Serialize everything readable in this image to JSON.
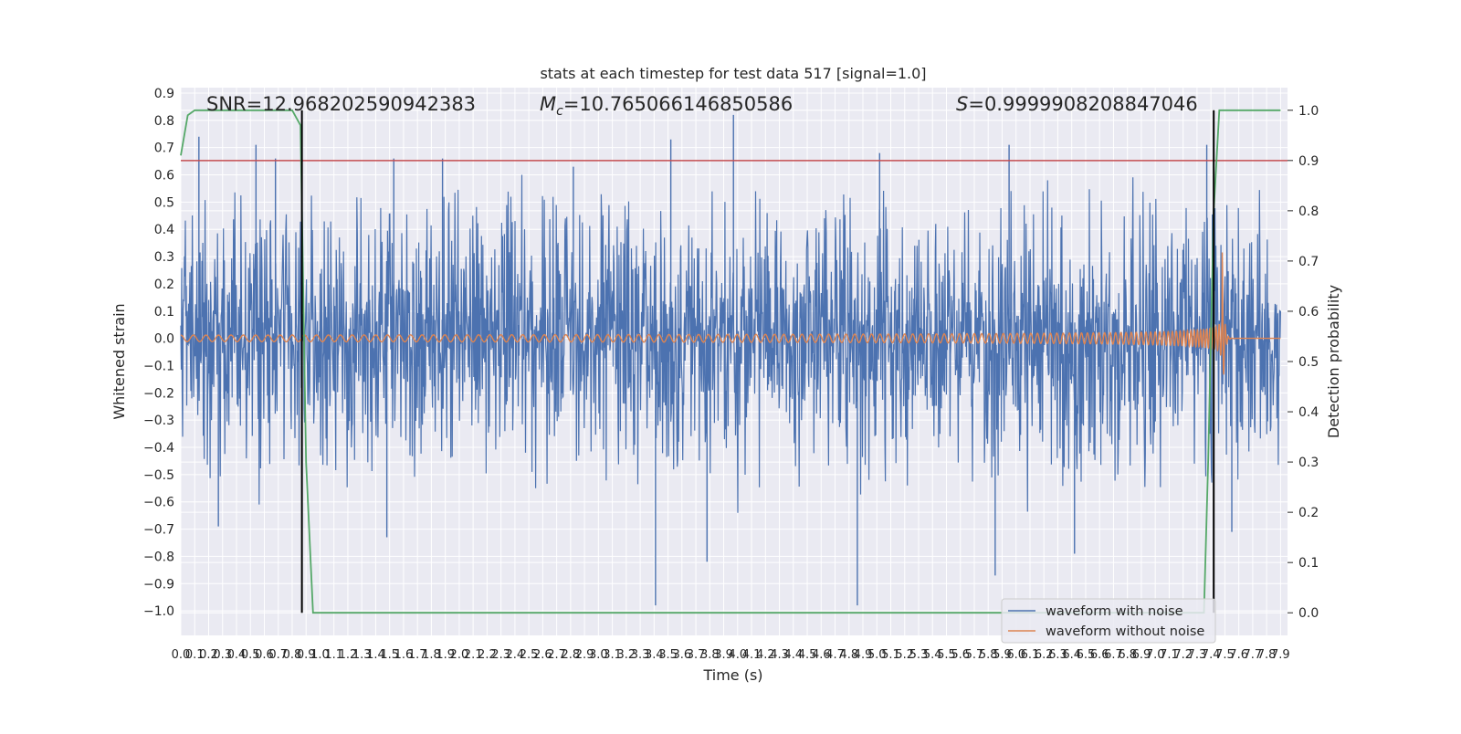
{
  "chart_data": {
    "type": "line",
    "title": "stats at each timestep for test data 517 [signal=1.0]",
    "xlabel": "Time (s)",
    "ylabel": "Whitened strain",
    "ylabel_right": "Detection probability",
    "xlim": [
      0.0,
      7.95
    ],
    "ylim": [
      -1.09,
      0.92
    ],
    "ylim_right": [
      -0.045,
      1.045
    ],
    "x_ticks": [
      0.0,
      0.1,
      0.2,
      0.3,
      0.4,
      0.5,
      0.6,
      0.7,
      0.8,
      0.9,
      1.0,
      1.1,
      1.2,
      1.3,
      1.4,
      1.5,
      1.6,
      1.7,
      1.8,
      1.9,
      2.0,
      2.1,
      2.2,
      2.3,
      2.4,
      2.5,
      2.6,
      2.7,
      2.8,
      2.9,
      3.0,
      3.1,
      3.2,
      3.3,
      3.4,
      3.5,
      3.6,
      3.7,
      3.8,
      3.9,
      4.0,
      4.1,
      4.2,
      4.3,
      4.4,
      4.5,
      4.6,
      4.7,
      4.8,
      4.9,
      5.0,
      5.1,
      5.2,
      5.3,
      5.4,
      5.5,
      5.6,
      5.7,
      5.8,
      5.9,
      6.0,
      6.1,
      6.2,
      6.3,
      6.4,
      6.5,
      6.6,
      6.7,
      6.8,
      6.9,
      7.0,
      7.1,
      7.2,
      7.3,
      7.4,
      7.5,
      7.6,
      7.7,
      7.8,
      7.9
    ],
    "x_tick_labels": [
      "0.0",
      "0.1",
      "0.2",
      "0.3",
      "0.4",
      "0.5",
      "0.6",
      "0.7",
      "0.8",
      "0.9",
      "1.0",
      "1.1",
      "1.2",
      "1.3",
      "1.4",
      "1.5",
      "1.6",
      "1.7",
      "1.8",
      "1.9",
      "2.0",
      "2.1",
      "2.2",
      "2.3",
      "2.4",
      "2.5",
      "2.6",
      "2.7",
      "2.8",
      "2.9",
      "3.0",
      "3.1",
      "3.2",
      "3.3",
      "3.4",
      "3.5",
      "3.6",
      "3.7",
      "3.8",
      "3.9",
      "4.0",
      "4.1",
      "4.2",
      "4.3",
      "4.4",
      "4.5",
      "4.6",
      "4.7",
      "4.8",
      "4.9",
      "5.0",
      "5.1",
      "5.2",
      "5.3",
      "5.4",
      "5.5",
      "5.6",
      "5.7",
      "5.8",
      "5.9",
      "6.0",
      "6.1",
      "6.2",
      "6.3",
      "6.4",
      "6.5",
      "6.6",
      "6.7",
      "6.8",
      "6.9",
      "7.0",
      "7.1",
      "7.2",
      "7.3",
      "7.4",
      "7.5",
      "7.6",
      "7.7",
      "7.8",
      "7.9"
    ],
    "y_ticks": [
      0.9,
      0.8,
      0.7,
      0.6,
      0.5,
      0.4,
      0.3,
      0.2,
      0.1,
      0.0,
      -0.1,
      -0.2,
      -0.3,
      -0.4,
      -0.5,
      -0.6,
      -0.7,
      -0.8,
      -0.9,
      -1.0
    ],
    "y_tick_labels": [
      "0.9",
      "0.8",
      "0.7",
      "0.6",
      "0.5",
      "0.4",
      "0.3",
      "0.2",
      "0.1",
      "0.0",
      "−0.1",
      "−0.2",
      "−0.3",
      "−0.4",
      "−0.5",
      "−0.6",
      "−0.7",
      "−0.8",
      "−0.9",
      "−1.0"
    ],
    "y_right_ticks": [
      1.0,
      0.9,
      0.8,
      0.7,
      0.6,
      0.5,
      0.4,
      0.3,
      0.2,
      0.1,
      0.0
    ],
    "y_right_tick_labels": [
      "1.0",
      "0.9",
      "0.8",
      "0.7",
      "0.6",
      "0.5",
      "0.4",
      "0.3",
      "0.2",
      "0.1",
      "0.0"
    ],
    "grid": true,
    "legend_position": "bottom-right",
    "annotations": [
      {
        "text": "SNR=12.968202590942383",
        "x": 0.2
      },
      {
        "text": "=10.765066146850586",
        "prefix": "M",
        "sub": "c",
        "x": 2.58
      },
      {
        "text": "=0.9999908208847046",
        "prefix": "S",
        "x": 5.6
      }
    ],
    "vlines": [
      0.87,
      7.42
    ],
    "threshold": {
      "axis": "right",
      "value": 0.9,
      "color": "#c44e52"
    },
    "series": [
      {
        "name": "waveform with noise",
        "axis": "left",
        "color": "#4c72b0",
        "kind": "noise",
        "envelope": {
          "dense_amplitude": 0.28,
          "typical_spike": 0.55
        },
        "spikes": [
          {
            "x": 0.13,
            "y": 0.74
          },
          {
            "x": 0.54,
            "y": 0.71
          },
          {
            "x": 0.68,
            "y": 0.66
          },
          {
            "x": 1.53,
            "y": 0.66
          },
          {
            "x": 1.88,
            "y": 0.66
          },
          {
            "x": 2.82,
            "y": 0.63
          },
          {
            "x": 3.52,
            "y": 0.73
          },
          {
            "x": 3.97,
            "y": 0.82
          },
          {
            "x": 5.02,
            "y": 0.68
          },
          {
            "x": 5.95,
            "y": 0.71
          },
          {
            "x": 7.37,
            "y": 0.71
          },
          {
            "x": 0.27,
            "y": -0.69
          },
          {
            "x": 3.41,
            "y": -0.98
          },
          {
            "x": 3.78,
            "y": -0.82
          },
          {
            "x": 4.86,
            "y": -0.98
          },
          {
            "x": 5.85,
            "y": -0.87
          },
          {
            "x": 6.42,
            "y": -0.79
          },
          {
            "x": 1.48,
            "y": -0.73
          },
          {
            "x": 7.55,
            "y": -0.71
          }
        ]
      },
      {
        "name": "waveform without noise",
        "axis": "left",
        "color": "#dd8452",
        "kind": "chirp",
        "start_amplitude": 0.012,
        "peak_amplitude": 0.35,
        "merger_time": 7.48,
        "start_frequency": 11,
        "end_frequency": 45
      },
      {
        "name": "",
        "axis": "right",
        "color": "#55a868",
        "kind": "probability",
        "x": [
          0.0,
          0.05,
          0.1,
          0.8,
          0.86,
          0.9,
          0.95,
          7.35,
          7.38,
          7.42,
          7.46,
          7.9
        ],
        "y": [
          0.91,
          0.99,
          1.0,
          1.0,
          0.97,
          0.3,
          0.0,
          0.0,
          0.3,
          0.8,
          1.0,
          1.0
        ]
      }
    ]
  }
}
